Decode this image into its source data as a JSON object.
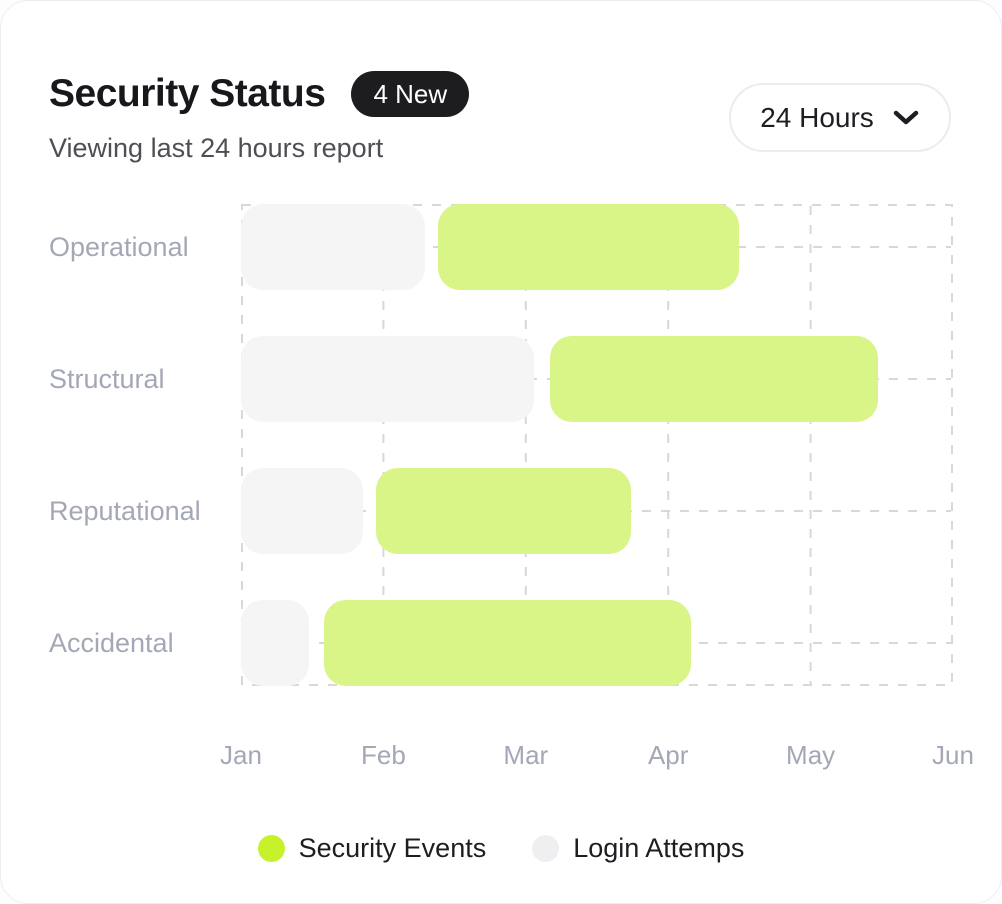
{
  "header": {
    "title": "Security Status",
    "badge": "4 New",
    "subtitle": "Viewing last 24 hours report",
    "range_selector": {
      "value": "24 Hours"
    }
  },
  "colors": {
    "security_events_bar": "#d9f487",
    "security_events_dot": "#c6f22b",
    "login_attempts_bar": "#f5f5f6",
    "login_attempts_dot": "#efeff2",
    "grid": "#d8d8da",
    "axis_text": "#a4a8b6",
    "badge_bg": "#1d1d1f"
  },
  "chart_data": {
    "type": "bar",
    "subtype": "horizontal-gantt",
    "title": "Security Status",
    "units": "months from Jan (0 = Jan gridline, 5 = Jun gridline)",
    "categories": [
      "Operational",
      "Structural",
      "Reputational",
      "Accidental"
    ],
    "x_axis": {
      "labels": [
        "Jan",
        "Feb",
        "Mar",
        "Apr",
        "May",
        "Jun"
      ],
      "range": [
        0,
        5
      ]
    },
    "grid": "dashed",
    "legend_position": "bottom-center",
    "series": [
      {
        "name": "Login Attemps",
        "key": "login-attempts",
        "color": "#f5f5f6",
        "spans": [
          [
            0,
            1.29
          ],
          [
            0,
            2.06
          ],
          [
            0,
            0.86
          ],
          [
            0,
            0.48
          ]
        ]
      },
      {
        "name": "Security Events",
        "key": "security-events",
        "color": "#d9f487",
        "spans": [
          [
            1.38,
            3.5
          ],
          [
            2.17,
            4.47
          ],
          [
            0.95,
            2.74
          ],
          [
            0.58,
            3.16
          ]
        ]
      }
    ],
    "legend": [
      {
        "label": "Security Events",
        "color": "#c6f22b"
      },
      {
        "label": "Login Attemps",
        "color": "#efeff2"
      }
    ]
  }
}
